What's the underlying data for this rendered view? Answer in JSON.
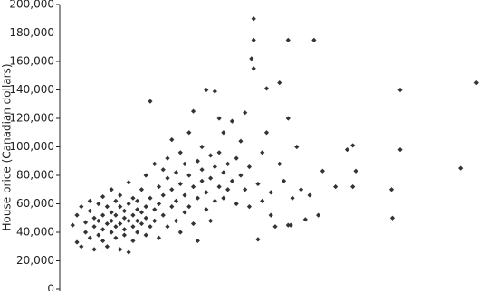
{
  "chart_data": {
    "type": "scatter",
    "y_label": "House price (Canadian dollars)",
    "color": "#333333",
    "xlim": [
      0,
      100
    ],
    "ylim": [
      0,
      200000
    ],
    "yticks": [
      0,
      {
        "value": 20000,
        "label": "20,000"
      },
      {
        "value": 40000,
        "label": "40,000"
      },
      {
        "value": 60000,
        "label": "60,000"
      },
      {
        "value": 80000,
        "label": "80,000"
      },
      {
        "value": 100000,
        "label": "100,000"
      },
      {
        "value": 120000,
        "label": "120,000"
      },
      {
        "value": 140000,
        "label": "140,000"
      },
      {
        "value": 160000,
        "label": "160,000"
      },
      {
        "value": 180000,
        "label": "180,000"
      },
      {
        "value": 200000,
        "label": "200,000"
      }
    ],
    "x": [
      3,
      4,
      4,
      5,
      5,
      6,
      6,
      7,
      7,
      7,
      8,
      8,
      8,
      9,
      9,
      9,
      10,
      10,
      10,
      10,
      11,
      11,
      11,
      12,
      12,
      12,
      12,
      13,
      13,
      13,
      13,
      14,
      14,
      14,
      14,
      15,
      15,
      15,
      15,
      16,
      16,
      16,
      16,
      17,
      17,
      17,
      17,
      18,
      18,
      18,
      18,
      19,
      19,
      19,
      20,
      20,
      20,
      20,
      21,
      21,
      21,
      22,
      22,
      22,
      23,
      23,
      23,
      24,
      24,
      24,
      25,
      25,
      25,
      26,
      26,
      26,
      27,
      27,
      27,
      28,
      28,
      28,
      29,
      29,
      29,
      30,
      30,
      30,
      31,
      31,
      31,
      32,
      32,
      32,
      33,
      33,
      33,
      34,
      34,
      34,
      35,
      35,
      35,
      36,
      36,
      36,
      37,
      37,
      37,
      38,
      38,
      38,
      39,
      39,
      40,
      40,
      41,
      41,
      42,
      42,
      43,
      43,
      44,
      44,
      46,
      46,
      47,
      47,
      48,
      48,
      49,
      49,
      50,
      51,
      51,
      52,
      53,
      53,
      54,
      55,
      56,
      57,
      58,
      60,
      45,
      45,
      53,
      59,
      44.5,
      45,
      96.7,
      79,
      79,
      93,
      77,
      77.2,
      68,
      66.7,
      68.7,
      68,
      64,
      61,
      53.6
    ],
    "values": [
      45000,
      33000,
      52000,
      30000,
      58000,
      40000,
      47000,
      55000,
      36000,
      62000,
      44000,
      50000,
      28000,
      60000,
      38000,
      48000,
      52000,
      42000,
      65000,
      34000,
      46000,
      58000,
      30000,
      54000,
      40000,
      70000,
      48000,
      62000,
      36000,
      44000,
      52000,
      58000,
      46000,
      28000,
      66000,
      50000,
      42000,
      55000,
      38000,
      60000,
      48000,
      26000,
      75000,
      52000,
      44000,
      64000,
      34000,
      56000,
      48000,
      62000,
      40000,
      70000,
      54000,
      46000,
      58000,
      80000,
      38000,
      50000,
      132000,
      64000,
      44000,
      88000,
      56000,
      48000,
      72000,
      60000,
      36000,
      84000,
      52000,
      66000,
      78000,
      92000,
      44000,
      70000,
      58000,
      105000,
      82000,
      62000,
      48000,
      96000,
      74000,
      40000,
      88000,
      66000,
      54000,
      110000,
      80000,
      58000,
      72000,
      125000,
      46000,
      90000,
      64000,
      34000,
      84000,
      76000,
      100000,
      68000,
      56000,
      140000,
      94000,
      78000,
      48000,
      139000,
      86000,
      62000,
      72000,
      120000,
      96000,
      82000,
      64000,
      110000,
      88000,
      70000,
      76000,
      118000,
      92000,
      60000,
      80000,
      104000,
      70000,
      124000,
      86000,
      58000,
      35000,
      74000,
      96000,
      62000,
      141000,
      110000,
      68000,
      52000,
      44000,
      145000,
      88000,
      76000,
      45000,
      120000,
      64000,
      100000,
      70000,
      49000,
      66000,
      52000,
      190000,
      175000,
      175000,
      175000,
      162000,
      155000,
      145000,
      140000,
      98000,
      85000,
      70000,
      50000,
      101000,
      98000,
      83000,
      72000,
      72000,
      83000,
      45000
    ]
  }
}
